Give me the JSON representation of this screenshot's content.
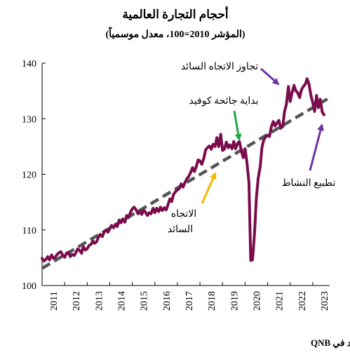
{
  "chart_data": {
    "type": "line",
    "title": "أحجام التجارة العالمية",
    "subtitle": "(المؤشر 2010=100، معدل موسمياً)",
    "source": "المصادر: مكتب تحليل السياسات الاقتصادية، قسم الاقتصاد في QNB",
    "ylim": [
      100,
      140
    ],
    "yticks": [
      "100",
      "110",
      "120",
      "130",
      "140"
    ],
    "xlim": [
      2011,
      2023.75
    ],
    "xticks": [
      "2011",
      "2012",
      "2013",
      "2014",
      "2015",
      "2016",
      "2017",
      "2018",
      "2019",
      "2020",
      "2021",
      "2022",
      "2023"
    ],
    "grid": false,
    "series": [
      {
        "color": "#7a0c4c",
        "x": [
          2011.0,
          2011.08,
          2011.17,
          2011.25,
          2011.33,
          2011.42,
          2011.5,
          2011.58,
          2011.67,
          2011.75,
          2011.83,
          2011.92,
          2012.0,
          2012.08,
          2012.17,
          2012.25,
          2012.33,
          2012.42,
          2012.5,
          2012.58,
          2012.67,
          2012.75,
          2012.83,
          2012.92,
          2013.0,
          2013.08,
          2013.17,
          2013.25,
          2013.33,
          2013.42,
          2013.5,
          2013.58,
          2013.67,
          2013.75,
          2013.83,
          2013.92,
          2014.0,
          2014.08,
          2014.17,
          2014.25,
          2014.33,
          2014.42,
          2014.5,
          2014.58,
          2014.67,
          2014.75,
          2014.83,
          2014.92,
          2015.0,
          2015.08,
          2015.17,
          2015.25,
          2015.33,
          2015.42,
          2015.5,
          2015.58,
          2015.67,
          2015.75,
          2015.83,
          2015.92,
          2016.0,
          2016.08,
          2016.17,
          2016.25,
          2016.33,
          2016.42,
          2016.5,
          2016.58,
          2016.67,
          2016.75,
          2016.83,
          2016.92,
          2017.0,
          2017.08,
          2017.17,
          2017.25,
          2017.33,
          2017.42,
          2017.5,
          2017.58,
          2017.67,
          2017.75,
          2017.83,
          2017.92,
          2018.0,
          2018.08,
          2018.17,
          2018.25,
          2018.33,
          2018.42,
          2018.5,
          2018.58,
          2018.67,
          2018.75,
          2018.83,
          2018.92,
          2019.0,
          2019.08,
          2019.17,
          2019.25,
          2019.33,
          2019.42,
          2019.5,
          2019.58,
          2019.67,
          2019.75,
          2019.83,
          2019.92,
          2020.0,
          2020.08,
          2020.17,
          2020.25,
          2020.33,
          2020.42,
          2020.5,
          2020.58,
          2020.67,
          2020.75,
          2020.83,
          2020.92,
          2021.0,
          2021.08,
          2021.17,
          2021.25,
          2021.33,
          2021.42,
          2021.5,
          2021.58,
          2021.67,
          2021.75,
          2021.83,
          2021.92,
          2022.0,
          2022.08,
          2022.17,
          2022.25,
          2022.33,
          2022.42,
          2022.5,
          2022.58,
          2022.67,
          2022.75,
          2022.83,
          2022.92,
          2023.0,
          2023.08,
          2023.17,
          2023.25,
          2023.33,
          2023.42,
          2023.5
        ],
        "values": [
          104.9,
          104.4,
          104.7,
          105.2,
          104.6,
          105.5,
          104.9,
          105.1,
          105.6,
          105.9,
          106.1,
          105.4,
          105.1,
          105.8,
          106.0,
          105.2,
          105.6,
          105.4,
          105.9,
          106.6,
          106.3,
          105.8,
          107.0,
          106.4,
          106.6,
          107.2,
          107.4,
          108.0,
          107.6,
          107.9,
          108.7,
          109.2,
          108.8,
          109.6,
          110.0,
          109.6,
          110.2,
          110.8,
          110.4,
          111.0,
          110.6,
          111.8,
          111.3,
          112.0,
          111.4,
          112.6,
          112.2,
          113.2,
          113.8,
          114.1,
          113.6,
          112.9,
          113.3,
          112.8,
          113.6,
          113.2,
          112.6,
          113.1,
          112.9,
          113.9,
          113.1,
          113.9,
          113.3,
          114.1,
          113.5,
          114.0,
          113.6,
          114.5,
          115.6,
          115.1,
          116.4,
          116.9,
          117.2,
          117.4,
          118.3,
          117.7,
          118.5,
          119.2,
          119.6,
          120.3,
          121.2,
          120.5,
          121.3,
          122.6,
          122.4,
          121.8,
          122.9,
          124.4,
          124.8,
          125.1,
          124.5,
          125.4,
          125.0,
          126.6,
          125.0,
          127.2,
          124.3,
          124.5,
          125.8,
          124.8,
          125.3,
          124.6,
          125.9,
          124.6,
          125.6,
          125.9,
          124.3,
          123.0,
          124.6,
          122.2,
          118.6,
          104.5,
          104.6,
          109.4,
          115.8,
          119.3,
          121.4,
          124.9,
          126.2,
          126.8,
          127.0,
          126.8,
          128.6,
          129.5,
          128.7,
          129.3,
          129.7,
          128.3,
          128.6,
          131.3,
          132.6,
          135.8,
          133.1,
          134.6,
          136.0,
          135.0,
          134.7,
          133.8,
          135.2,
          135.8,
          136.2,
          137.2,
          136.3,
          134.2,
          132.9,
          131.3,
          134.2,
          132.0,
          133.5,
          131.2,
          130.7
        ]
      },
      {
        "style": "dashed",
        "color": "#555555",
        "x": [
          2011.0,
          2023.75
        ],
        "values": [
          103.1,
          133.8
        ]
      }
    ],
    "annotations": [
      {
        "id": "trend-above",
        "text": "تجاوز الاتجاه السائد",
        "color": "#6b35a3"
      },
      {
        "id": "covid-start",
        "text": "بداية جائحة كوفيد",
        "color": "#1ea84a"
      },
      {
        "id": "trend-label",
        "lines": [
          "الاتجاه",
          "السائد"
        ],
        "color": "#f5b800"
      },
      {
        "id": "normalization",
        "text": "تطبيع النشاط",
        "color": "#6b35a3"
      }
    ]
  }
}
